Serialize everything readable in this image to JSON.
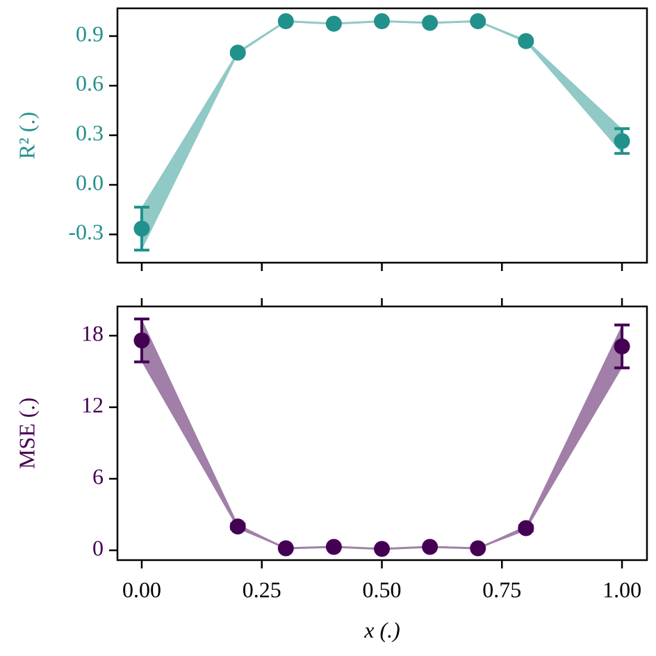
{
  "chart_data": [
    {
      "type": "errorbar-line",
      "ylabel": "R² (.)",
      "color": "#21918c",
      "band_color": "#90c9c5",
      "x": [
        0,
        0.2,
        0.3,
        0.4,
        0.5,
        0.6,
        0.7,
        0.8,
        1.0
      ],
      "values": [
        -0.265,
        0.8,
        0.99,
        0.975,
        0.99,
        0.98,
        0.99,
        0.87,
        0.265
      ],
      "errors": [
        0.13,
        0.01,
        0.005,
        0.005,
        0.005,
        0.005,
        0.005,
        0.01,
        0.075
      ],
      "xlim": [
        -0.0506,
        1.052
      ],
      "xticks": [
        0,
        0.25,
        0.5,
        0.75,
        1.0
      ],
      "ylim": [
        -0.471,
        1.068
      ],
      "yticks": [
        -0.3,
        {
          "value": 0,
          "label": "0.0"
        },
        0.3,
        0.6,
        0.9
      ]
    },
    {
      "type": "errorbar-line",
      "ylabel": "MSE (.)",
      "xlabel": "x (.)",
      "color": "#440154",
      "band_color": "#a17fa8",
      "x": [
        0,
        0.2,
        0.3,
        0.4,
        0.5,
        0.6,
        0.7,
        0.8,
        1.0
      ],
      "values": [
        17.6,
        2.0,
        0.17,
        0.29,
        0.12,
        0.29,
        0.17,
        1.86,
        17.1
      ],
      "errors": [
        1.8,
        0.2,
        0.05,
        0.05,
        0.05,
        0.05,
        0.05,
        0.2,
        1.8
      ],
      "xlim": [
        -0.0506,
        1.052
      ],
      "xticks": [
        {
          "value": 0,
          "label": "0.00"
        },
        {
          "value": 0.25,
          "label": "0.25"
        },
        {
          "value": 0.5,
          "label": "0.50"
        },
        {
          "value": 0.75,
          "label": "0.75"
        },
        {
          "value": 1.0,
          "label": "1.00"
        }
      ],
      "ylim": [
        -0.82,
        20.45
      ],
      "yticks": [
        0,
        6,
        12,
        18
      ]
    }
  ]
}
